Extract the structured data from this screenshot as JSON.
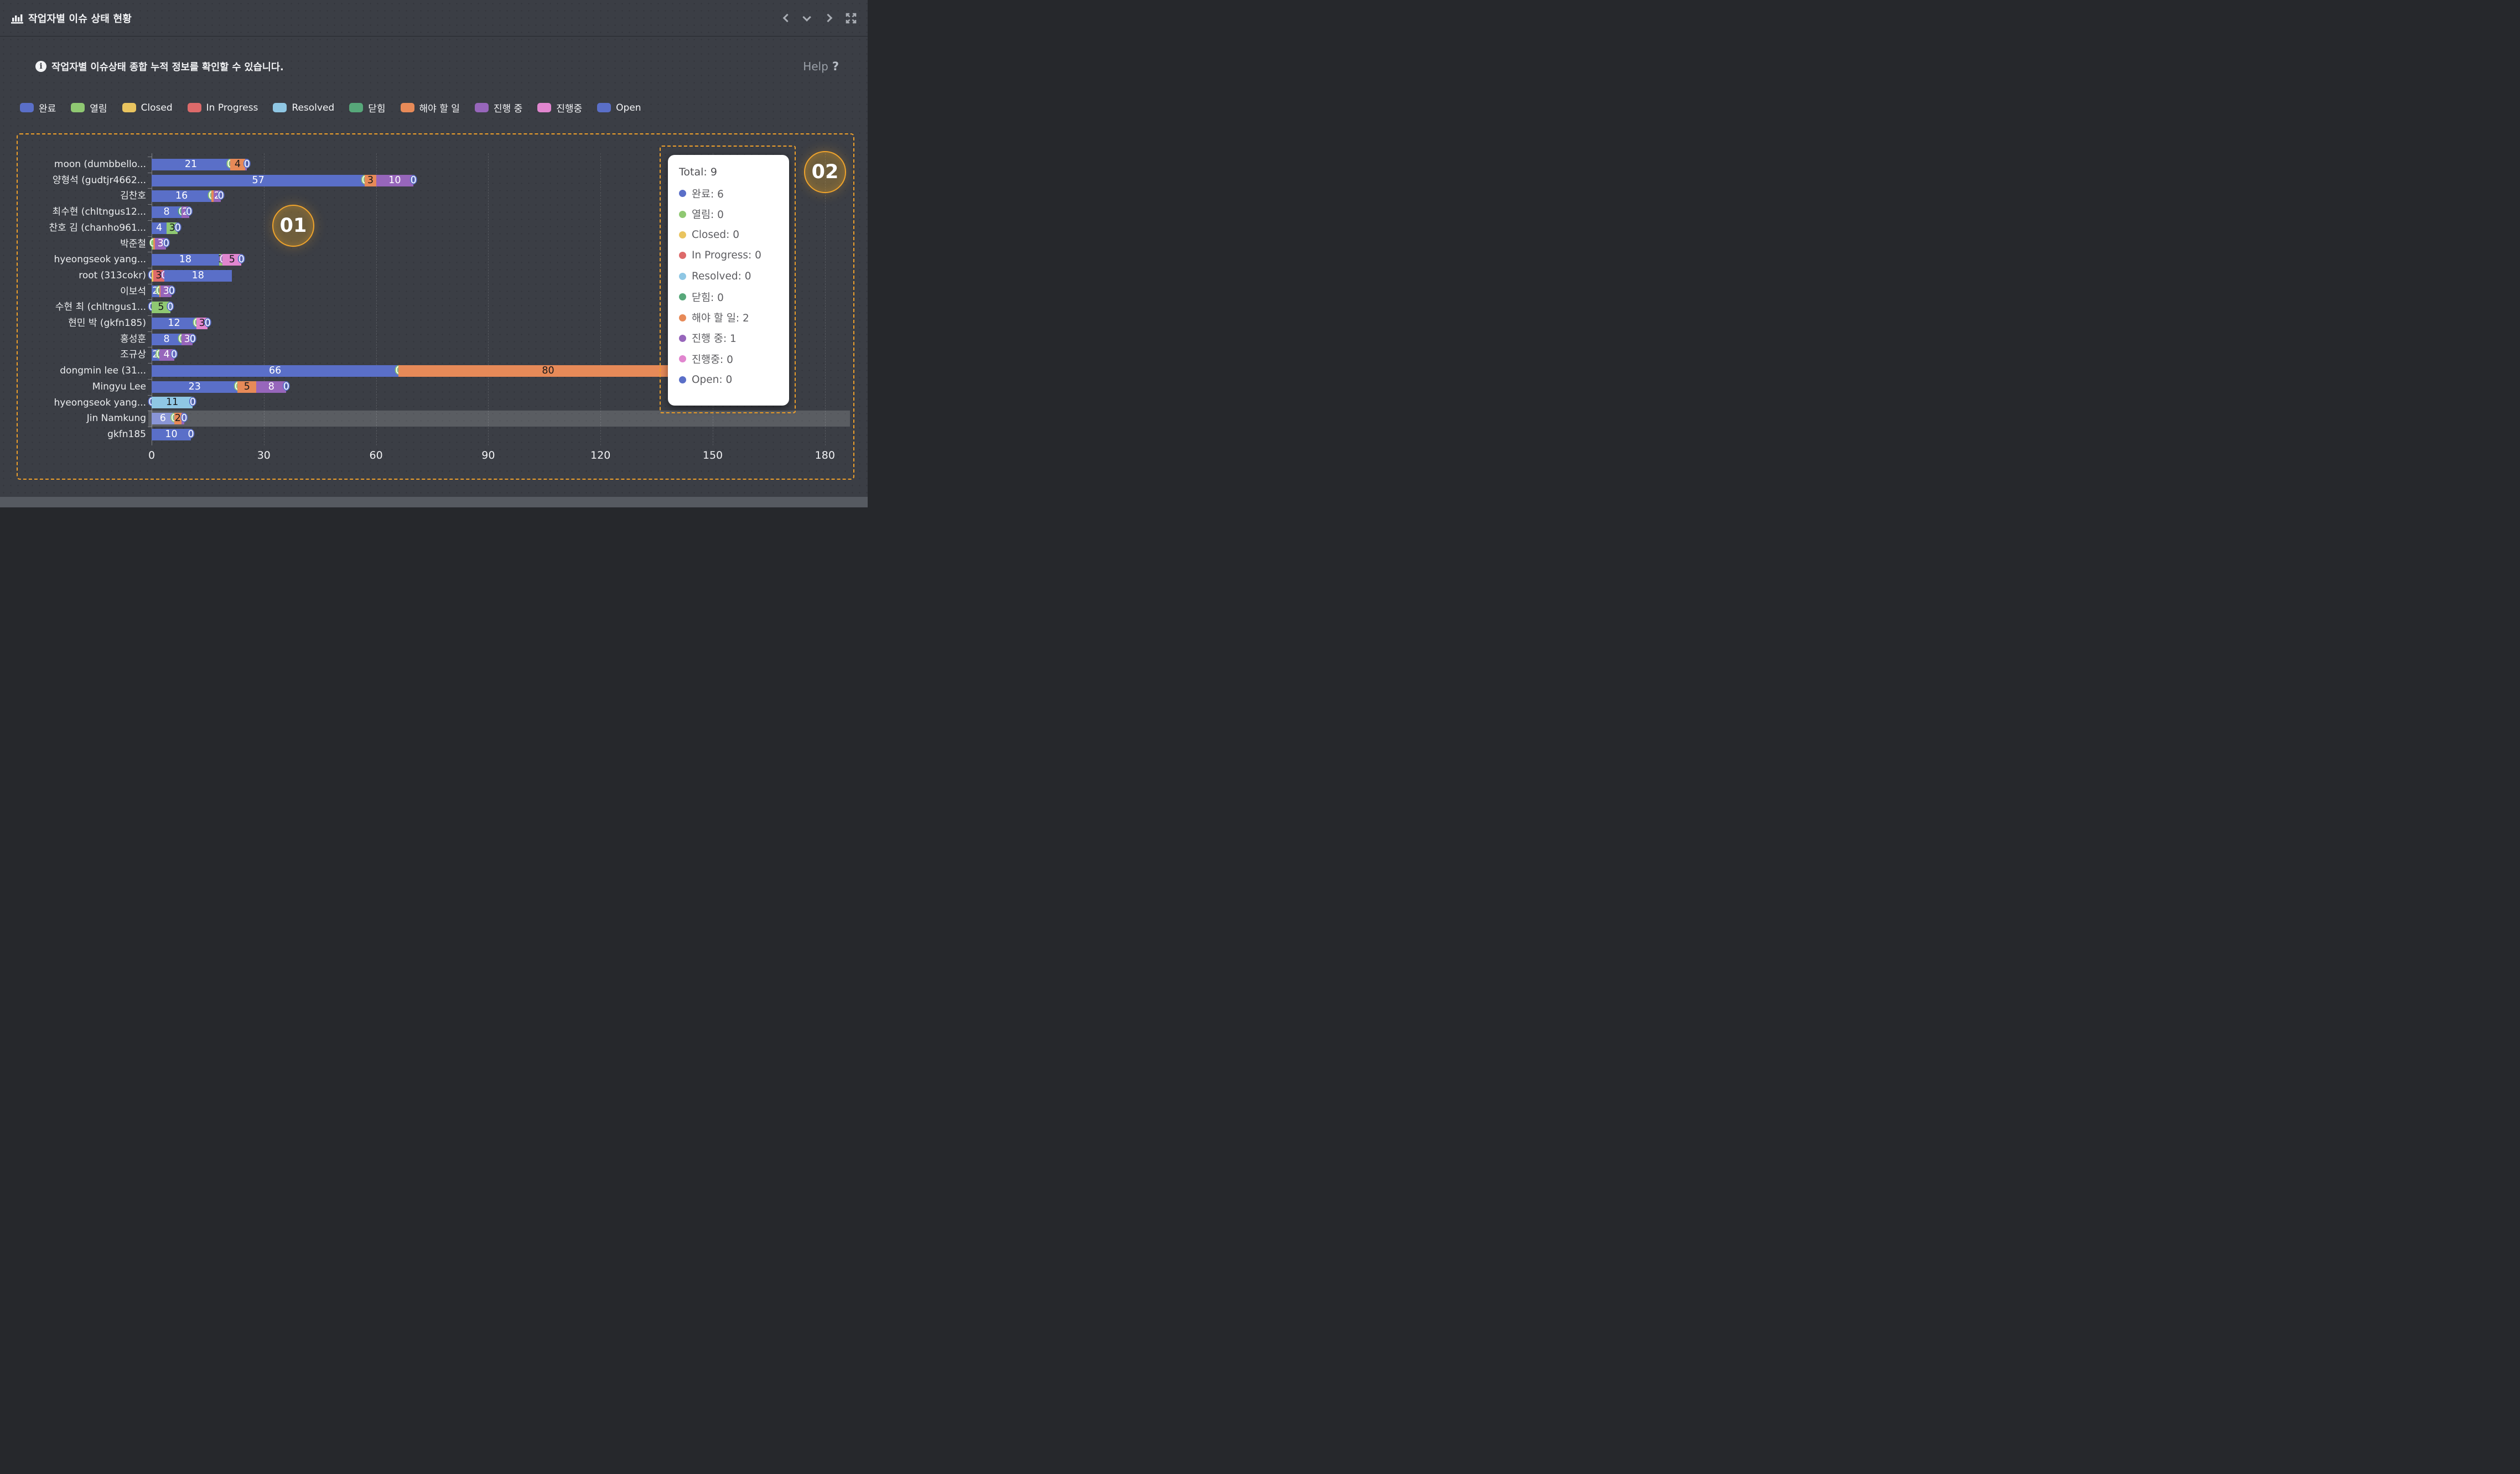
{
  "header": {
    "title": "작업자별 이슈 상태 현황"
  },
  "info": {
    "text": "작업자별 이슈상태 종합 누적 정보를 확인할 수 있습니다.",
    "help_label": "Help",
    "help_icon": "?"
  },
  "annotations": {
    "badge_1": "01",
    "badge_2": "02"
  },
  "colors": {
    "done": "#5a6fc8",
    "done-light": "#8995d6",
    "open-green": "#8fc872",
    "closed-yellow": "#e9c45f",
    "in-progress": "#dd6a6a",
    "resolved": "#8fc7e4",
    "closed-green": "#57a87a",
    "todo": "#e78a58",
    "in-progress-kr": "#9766bb",
    "in-progress-kr2": "#e186cf",
    "open": "#5a6fc8",
    "accent-dashed": "#efa02b"
  },
  "legend": {
    "items": [
      {
        "key": "done",
        "label": "완료"
      },
      {
        "key": "open-green",
        "label": "열림"
      },
      {
        "key": "closed-yellow",
        "label": "Closed"
      },
      {
        "key": "in-progress",
        "label": "In Progress"
      },
      {
        "key": "resolved",
        "label": "Resolved"
      },
      {
        "key": "closed-green",
        "label": "닫힘"
      },
      {
        "key": "todo",
        "label": "해야 할 일"
      },
      {
        "key": "in-progress-kr",
        "label": "진행 중"
      },
      {
        "key": "in-progress-kr2",
        "label": "진행중"
      },
      {
        "key": "open",
        "label": "Open"
      }
    ]
  },
  "tooltip": {
    "total_label": "Total",
    "total_value": "9",
    "rows": [
      {
        "key": "done",
        "label": "완료",
        "value": "6"
      },
      {
        "key": "open-green",
        "label": "열림",
        "value": "0"
      },
      {
        "key": "closed-yellow",
        "label": "Closed",
        "value": "0"
      },
      {
        "key": "in-progress",
        "label": "In Progress",
        "value": "0"
      },
      {
        "key": "resolved",
        "label": "Resolved",
        "value": "0"
      },
      {
        "key": "closed-green",
        "label": "닫힘",
        "value": "0"
      },
      {
        "key": "todo",
        "label": "해야 할 일",
        "value": "2"
      },
      {
        "key": "in-progress-kr",
        "label": "진행 중",
        "value": "1"
      },
      {
        "key": "in-progress-kr2",
        "label": "진행중",
        "value": "0"
      },
      {
        "key": "open",
        "label": "Open",
        "value": "0"
      }
    ]
  },
  "chart_data": {
    "type": "bar",
    "orientation": "horizontal",
    "stacked": true,
    "xlim": [
      0,
      180
    ],
    "x_ticks": [
      0,
      30,
      60,
      90,
      120,
      150,
      180
    ],
    "grid": true,
    "series_names": [
      "완료",
      "열림",
      "Closed",
      "In Progress",
      "Resolved",
      "닫힘",
      "해야 할 일",
      "진행 중",
      "진행중",
      "Open"
    ],
    "rows": [
      {
        "name": "moon (dumbbello...",
        "highlight": false,
        "items": [
          {
            "k": "done",
            "v": 21,
            "t": "21",
            "tc": "w"
          },
          {
            "k": "open-green",
            "v": 0,
            "t": "0",
            "tc": "z"
          },
          {
            "k": "todo",
            "v": 4,
            "t": "4",
            "tc": "b"
          },
          {
            "k": "in-progress-kr",
            "v": 0.5,
            "t": "",
            "tc": "w"
          },
          {
            "k": "open",
            "v": 0,
            "t": "0",
            "tc": "z"
          }
        ]
      },
      {
        "name": "양형석 (gudtjr4662...",
        "highlight": false,
        "items": [
          {
            "k": "done",
            "v": 57,
            "t": "57",
            "tc": "w"
          },
          {
            "k": "open-green",
            "v": 0,
            "t": "0",
            "tc": "z"
          },
          {
            "k": "todo",
            "v": 3,
            "t": "3",
            "tc": "b"
          },
          {
            "k": "in-progress-kr",
            "v": 10,
            "t": "10",
            "tc": "w"
          },
          {
            "k": "open",
            "v": 0,
            "t": "0",
            "tc": "z"
          }
        ]
      },
      {
        "name": "김찬호",
        "highlight": false,
        "items": [
          {
            "k": "done",
            "v": 16,
            "t": "16",
            "tc": "w"
          },
          {
            "k": "open-green",
            "v": 0,
            "t": "0",
            "tc": "z"
          },
          {
            "k": "todo",
            "v": 0.5,
            "t": "",
            "tc": "b"
          },
          {
            "k": "in-progress-kr",
            "v": 2,
            "t": "2",
            "tc": "w"
          },
          {
            "k": "open",
            "v": 0,
            "t": "0",
            "tc": "z"
          }
        ]
      },
      {
        "name": "최수현 (chltngus12...",
        "highlight": false,
        "items": [
          {
            "k": "done",
            "v": 8,
            "t": "8",
            "tc": "w"
          },
          {
            "k": "closed-green",
            "v": 0,
            "t": "0",
            "tc": "z"
          },
          {
            "k": "in-progress-kr",
            "v": 2,
            "t": "2",
            "tc": "w"
          },
          {
            "k": "open",
            "v": 0,
            "t": "0",
            "tc": "z"
          }
        ]
      },
      {
        "name": "찬호 김 (chanho961...",
        "highlight": false,
        "items": [
          {
            "k": "done",
            "v": 4,
            "t": "4",
            "tc": "w"
          },
          {
            "k": "open-green",
            "v": 3,
            "t": "3",
            "tc": "b"
          },
          {
            "k": "open",
            "v": 0,
            "t": "0",
            "tc": "z"
          }
        ]
      },
      {
        "name": "박준철",
        "highlight": false,
        "items": [
          {
            "k": "open-green",
            "v": 0.5,
            "t": "0",
            "tc": "z"
          },
          {
            "k": "todo",
            "v": 0.4,
            "t": "",
            "tc": "b"
          },
          {
            "k": "in-progress-kr",
            "v": 3,
            "t": "3",
            "tc": "w"
          },
          {
            "k": "open",
            "v": 0,
            "t": "0",
            "tc": "z"
          }
        ]
      },
      {
        "name": "hyeongseok yang...",
        "highlight": false,
        "items": [
          {
            "k": "done",
            "v": 18,
            "t": "18",
            "tc": "w"
          },
          {
            "k": "open-green",
            "v": 1,
            "t": "1",
            "tc": "b"
          },
          {
            "k": "in-progress-kr",
            "v": 0,
            "t": "0",
            "tc": "z"
          },
          {
            "k": "in-progress-kr2",
            "v": 5,
            "t": "5",
            "tc": "b"
          },
          {
            "k": "open",
            "v": 0,
            "t": "0",
            "tc": "z"
          }
        ]
      },
      {
        "name": "root (313cokr)",
        "highlight": false,
        "items": [
          {
            "k": "done",
            "v": 0,
            "t": "0",
            "tc": "z"
          },
          {
            "k": "closed-yellow",
            "v": 0.4,
            "t": "",
            "tc": "b"
          },
          {
            "k": "in-progress",
            "v": 3,
            "t": "3",
            "tc": "b"
          },
          {
            "k": "in-progress-kr",
            "v": 0,
            "t": "0",
            "tc": "z"
          },
          {
            "k": "open",
            "v": 18,
            "t": "18",
            "tc": "w"
          }
        ]
      },
      {
        "name": "이보석",
        "highlight": false,
        "items": [
          {
            "k": "done",
            "v": 2,
            "t": "2",
            "tc": "w"
          },
          {
            "k": "open-green",
            "v": 0,
            "t": "0",
            "tc": "z"
          },
          {
            "k": "todo",
            "v": 0.4,
            "t": "",
            "tc": "b"
          },
          {
            "k": "in-progress-kr",
            "v": 3,
            "t": "3",
            "tc": "w"
          },
          {
            "k": "open",
            "v": 0,
            "t": "0",
            "tc": "z"
          }
        ]
      },
      {
        "name": "수현 최 (chltngus1...",
        "highlight": false,
        "items": [
          {
            "k": "done",
            "v": 0,
            "t": "0",
            "tc": "z"
          },
          {
            "k": "open-green",
            "v": 5,
            "t": "5",
            "tc": "b"
          },
          {
            "k": "open",
            "v": 0,
            "t": "0",
            "tc": "z"
          }
        ]
      },
      {
        "name": "현민 박 (gkfn185)",
        "highlight": false,
        "items": [
          {
            "k": "done",
            "v": 12,
            "t": "12",
            "tc": "w"
          },
          {
            "k": "open-green",
            "v": 0,
            "t": "0",
            "tc": "z"
          },
          {
            "k": "in-progress-kr2",
            "v": 3,
            "t": "3",
            "tc": "b"
          },
          {
            "k": "open",
            "v": 0,
            "t": "0",
            "tc": "z"
          }
        ]
      },
      {
        "name": "홍성훈",
        "highlight": false,
        "items": [
          {
            "k": "done",
            "v": 8,
            "t": "8",
            "tc": "w"
          },
          {
            "k": "open-green",
            "v": 0,
            "t": "0",
            "tc": "z"
          },
          {
            "k": "in-progress-kr",
            "v": 3,
            "t": "3",
            "tc": "w"
          },
          {
            "k": "open",
            "v": 0,
            "t": "0",
            "tc": "z"
          }
        ]
      },
      {
        "name": "조규상",
        "highlight": false,
        "items": [
          {
            "k": "done",
            "v": 2,
            "t": "2",
            "tc": "w"
          },
          {
            "k": "open-green",
            "v": 0,
            "t": "0",
            "tc": "z"
          },
          {
            "k": "in-progress-kr",
            "v": 4,
            "t": "4",
            "tc": "w"
          },
          {
            "k": "open",
            "v": 0,
            "t": "0",
            "tc": "z"
          }
        ]
      },
      {
        "name": "dongmin lee (31...",
        "highlight": false,
        "items": [
          {
            "k": "done",
            "v": 66,
            "t": "66",
            "tc": "w"
          },
          {
            "k": "open-green",
            "v": 0,
            "t": "0",
            "tc": "z"
          },
          {
            "k": "todo",
            "v": 80,
            "t": "80",
            "tc": "b"
          }
        ]
      },
      {
        "name": "Mingyu Lee",
        "highlight": false,
        "items": [
          {
            "k": "done",
            "v": 23,
            "t": "23",
            "tc": "w"
          },
          {
            "k": "open-green",
            "v": 0,
            "t": "0",
            "tc": "z"
          },
          {
            "k": "todo",
            "v": 5,
            "t": "5",
            "tc": "b"
          },
          {
            "k": "in-progress-kr",
            "v": 8,
            "t": "8",
            "tc": "w"
          },
          {
            "k": "open",
            "v": 0,
            "t": "0",
            "tc": "z"
          }
        ]
      },
      {
        "name": "hyeongseok yang...",
        "highlight": false,
        "items": [
          {
            "k": "done",
            "v": 0,
            "t": "0",
            "tc": "z"
          },
          {
            "k": "resolved",
            "v": 11,
            "t": "11",
            "tc": "b"
          },
          {
            "k": "open",
            "v": 0,
            "t": "0",
            "tc": "z"
          }
        ]
      },
      {
        "name": "Jin Namkung",
        "highlight": true,
        "items": [
          {
            "k": "done-light",
            "v": 6,
            "t": "6",
            "tc": "w"
          },
          {
            "k": "open-green",
            "v": 0,
            "t": "0",
            "tc": "z"
          },
          {
            "k": "todo",
            "v": 2,
            "t": "2",
            "tc": "b"
          },
          {
            "k": "in-progress-kr",
            "v": 0.7,
            "t": "",
            "tc": "w"
          },
          {
            "k": "open",
            "v": 0,
            "t": "0",
            "tc": "z"
          }
        ]
      },
      {
        "name": "gkfn185",
        "highlight": false,
        "items": [
          {
            "k": "done",
            "v": 10.5,
            "t": "10",
            "tc": "w"
          },
          {
            "k": "open",
            "v": 0,
            "t": "0",
            "tc": "z"
          }
        ]
      }
    ]
  }
}
